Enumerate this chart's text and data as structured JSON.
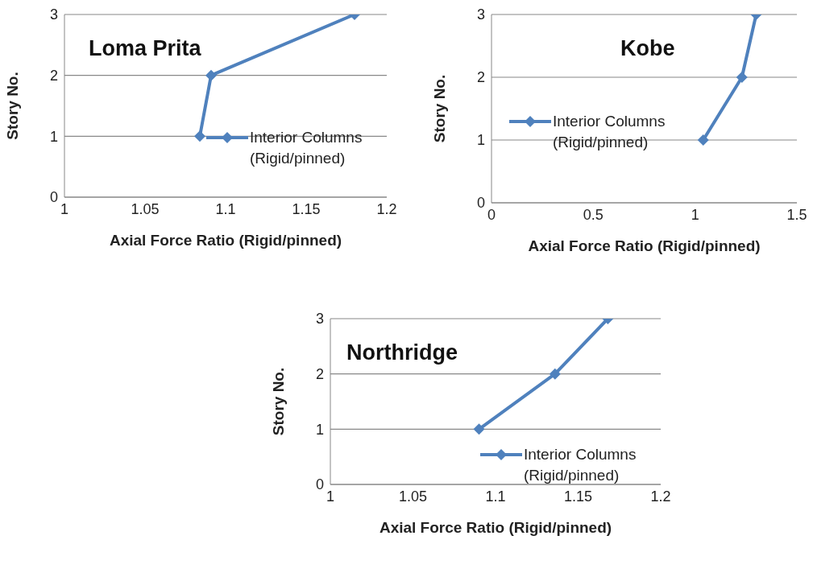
{
  "chart_data": [
    {
      "type": "line",
      "title": "Loma Prita",
      "xlabel": "Axial Force Ratio (Rigid/pinned)",
      "ylabel": "Story No.",
      "xlim": [
        1,
        1.2
      ],
      "xticks": [
        1,
        1.05,
        1.1,
        1.15,
        1.2
      ],
      "ylim": [
        0,
        3
      ],
      "yticks": [
        0,
        1,
        2,
        3
      ],
      "grid": "y",
      "legend": "right",
      "marker": "diamond",
      "series": [
        {
          "name": "Interior Columns (Rigid/pinned)",
          "color": "#4f81bd",
          "x": [
            1.084,
            1.091,
            1.18
          ],
          "values": [
            1,
            2,
            3
          ]
        }
      ]
    },
    {
      "type": "line",
      "title": "Kobe",
      "xlabel": "Axial Force Ratio (Rigid/pinned)",
      "ylabel": "Story No.",
      "xlim": [
        0,
        1.5
      ],
      "xticks": [
        0,
        0.5,
        1,
        1.5
      ],
      "ylim": [
        0,
        3
      ],
      "yticks": [
        0,
        1,
        2,
        3
      ],
      "grid": "y",
      "legend": "left",
      "marker": "diamond",
      "series": [
        {
          "name": "Interior Columns (Rigid/pinned)",
          "color": "#4f81bd",
          "x": [
            1.04,
            1.23,
            1.3
          ],
          "values": [
            1,
            2,
            3
          ]
        }
      ]
    },
    {
      "type": "line",
      "title": "Northridge",
      "xlabel": "Axial Force Ratio (Rigid/pinned)",
      "ylabel": "Story No.",
      "xlim": [
        1,
        1.2
      ],
      "xticks": [
        1,
        1.05,
        1.1,
        1.15,
        1.2
      ],
      "ylim": [
        0,
        3
      ],
      "yticks": [
        0,
        1,
        2,
        3
      ],
      "grid": "y",
      "legend": "bottom right",
      "marker": "diamond",
      "series": [
        {
          "name": "Interior Columns (Rigid/pinned)",
          "color": "#4f81bd",
          "x": [
            1.09,
            1.136,
            1.168
          ],
          "values": [
            1,
            2,
            3
          ]
        }
      ]
    }
  ]
}
